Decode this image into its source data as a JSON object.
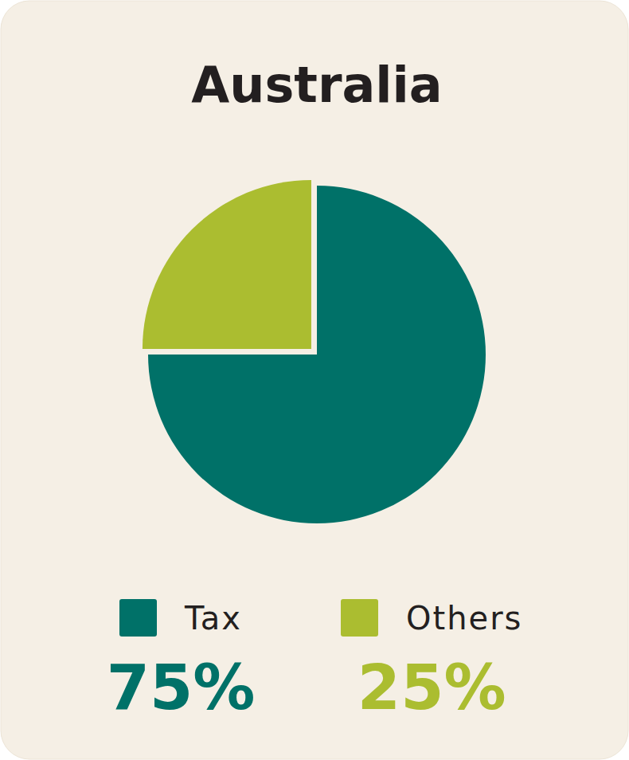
{
  "chart_data": {
    "type": "pie",
    "title": "Australia",
    "categories": [
      "Tax",
      "Others"
    ],
    "values": [
      75,
      25
    ],
    "value_labels": [
      "75%",
      "25%"
    ],
    "colors": [
      "#007168",
      "#abbd30"
    ],
    "data_labels": true,
    "legend": "bottom"
  }
}
